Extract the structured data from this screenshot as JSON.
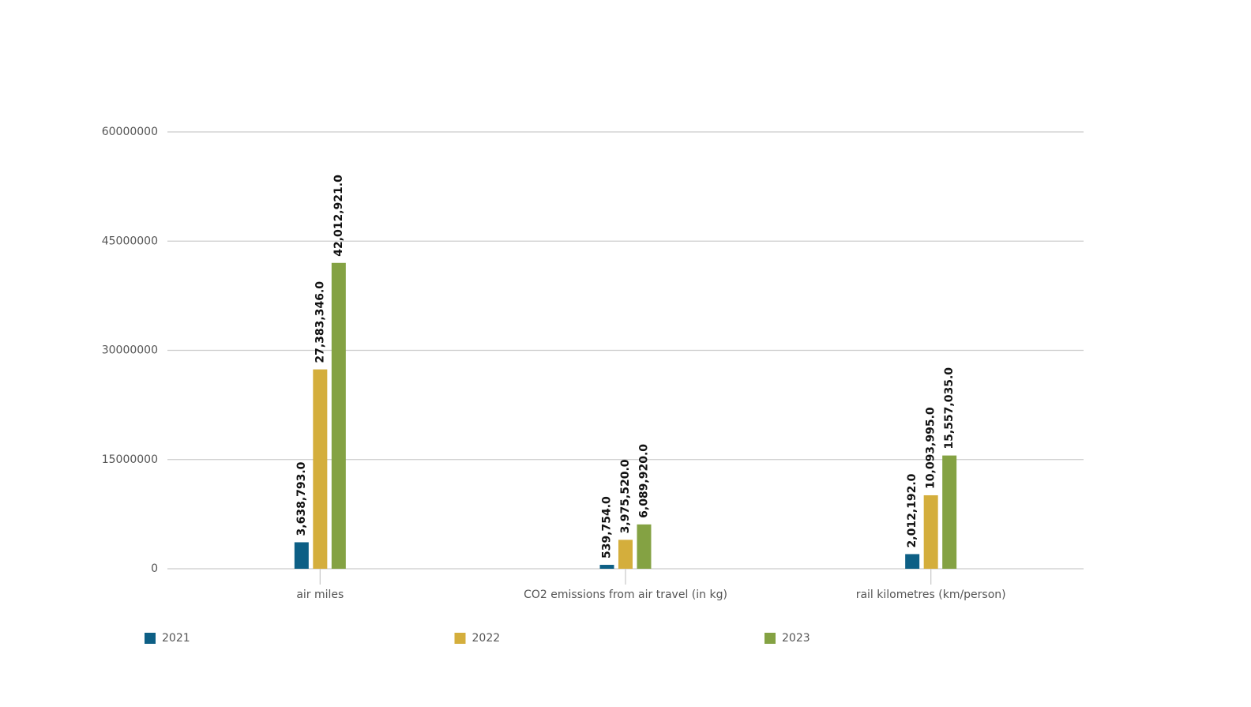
{
  "chart_data": {
    "type": "bar",
    "categories": [
      "air miles",
      "CO2 emissions from air travel (in kg)",
      "rail kilometres (km/person)"
    ],
    "series": [
      {
        "name": "2021",
        "color": "#0d5f85",
        "values": [
          3638793,
          539754,
          2012192
        ],
        "value_labels": [
          "3,638,793.0",
          "539,754.0",
          "2,012,192.0"
        ]
      },
      {
        "name": "2022",
        "color": "#d4ae3c",
        "values": [
          27383346,
          3975520,
          10093995
        ],
        "value_labels": [
          "27,383,346.0",
          "3,975,520.0",
          "10,093,995.0"
        ]
      },
      {
        "name": "2023",
        "color": "#84a243",
        "values": [
          42012921,
          6089920,
          15557035
        ],
        "value_labels": [
          "42,012,921.0",
          "6,089,920.0",
          "15,557,035.0"
        ]
      }
    ],
    "ylim": [
      0,
      60000000
    ],
    "yticks": [
      0,
      15000000,
      30000000,
      45000000,
      60000000
    ],
    "grid": true
  }
}
